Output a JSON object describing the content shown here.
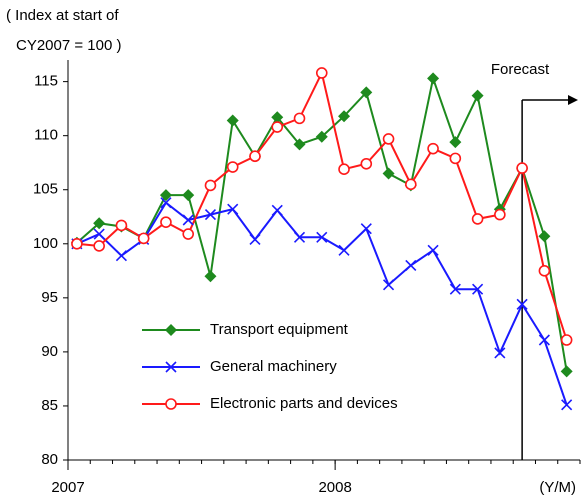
{
  "chart_data": {
    "type": "line",
    "y_axis_label": [
      "( Index at start of",
      "CY2007 = 100 )"
    ],
    "x_axis_unit": "(Y/M)",
    "categories": [
      "2007",
      null,
      null,
      null,
      null,
      null,
      null,
      null,
      null,
      null,
      null,
      null,
      "2008",
      null,
      null,
      null,
      null,
      null,
      null,
      null,
      null,
      null,
      null
    ],
    "ylim": [
      80,
      117
    ],
    "yticks": [
      80,
      85,
      90,
      95,
      100,
      105,
      110,
      115
    ],
    "grid": false,
    "legend": "lower left",
    "forecast": {
      "label": "Forecast",
      "start": 21
    },
    "series": [
      {
        "name": "Transport equipment",
        "color": "#1e8a1e",
        "marker": "diamond",
        "values": [
          100.1,
          101.9,
          101.6,
          100.5,
          104.5,
          104.5,
          97.0,
          111.4,
          108.1,
          111.7,
          109.2,
          109.9,
          111.8,
          114.0,
          106.5,
          105.4,
          115.3,
          109.4,
          113.7,
          103.2,
          107.0,
          100.7,
          88.2
        ]
      },
      {
        "name": "General machinery",
        "color": "#1a1aff",
        "marker": "x",
        "values": [
          100.0,
          100.9,
          98.9,
          100.4,
          103.8,
          102.2,
          102.7,
          103.2,
          100.4,
          103.1,
          100.6,
          100.6,
          99.4,
          101.4,
          96.2,
          98.0,
          99.4,
          95.8,
          95.8,
          89.9,
          94.4,
          91.1,
          85.1
        ]
      },
      {
        "name": "Electronic parts and devices",
        "color": "#ff1a1a",
        "marker": "circle",
        "values": [
          100.0,
          99.8,
          101.7,
          100.5,
          102.0,
          100.9,
          105.4,
          107.1,
          108.1,
          110.8,
          111.6,
          115.8,
          106.9,
          107.4,
          109.7,
          105.5,
          108.8,
          107.9,
          102.3,
          102.7,
          107.0,
          97.5,
          91.1
        ]
      }
    ]
  }
}
